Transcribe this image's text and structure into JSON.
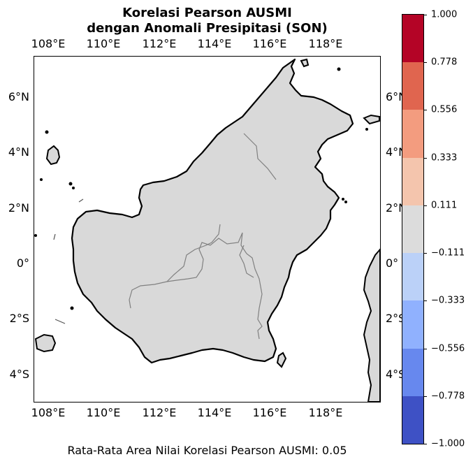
{
  "title": {
    "line1": "Korelasi Pearson AUSMI",
    "line2": "dengan Anomali Presipitasi (SON)"
  },
  "map": {
    "lon_range": [
      107.5,
      119.9
    ],
    "lat_range": [
      -5.0,
      7.4
    ],
    "lon_ticks": [
      "108°E",
      "110°E",
      "112°E",
      "114°E",
      "116°E",
      "118°E"
    ],
    "lat_ticks": [
      "6°N",
      "4°N",
      "2°N",
      "0°",
      "2°S",
      "4°S"
    ],
    "land_color": "#d9d9d9",
    "coast_color": "#000000",
    "border_color": "#808080"
  },
  "colorbar": {
    "labels": [
      "1.000",
      "0.778",
      "0.556",
      "0.333",
      "0.111",
      "−0.111",
      "−0.333",
      "−0.556",
      "−0.778",
      "−1.000"
    ],
    "colors": [
      "#b40426",
      "#e0654f",
      "#f39c7f",
      "#f4c5ad",
      "#dcdcdc",
      "#bbd1f8",
      "#90b1fe",
      "#6788ee",
      "#3e51c5"
    ]
  },
  "footer": "Rata-Rata Area Nilai Korelasi Pearson AUSMI: 0.05"
}
